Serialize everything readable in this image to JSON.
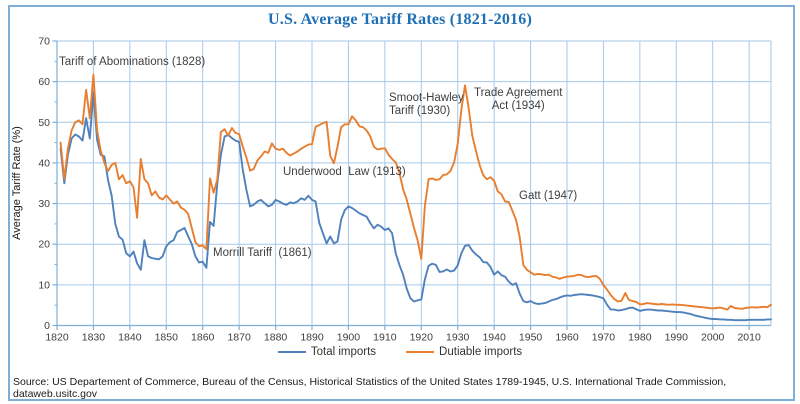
{
  "frame_border_color": "#7FAFD9",
  "title_color": "#1F6FB5",
  "source_note": "Source: US Departement of Commerce, Bureau of the Census, Historical Statistics of the United States 1789-1945, U.S. International Trade Commission, dataweb.usitc.gov",
  "chart_data": {
    "type": "line",
    "title": "U.S. Average Tariff Rates (1821-2016)",
    "xlabel": "",
    "ylabel": "Average Tariff Rate (%)",
    "xlim": [
      1820,
      2016
    ],
    "ylim": [
      0,
      70
    ],
    "x_start_year": 1821,
    "x_ticks": [
      1820,
      1830,
      1840,
      1850,
      1860,
      1870,
      1880,
      1890,
      1900,
      1910,
      1920,
      1930,
      1940,
      1950,
      1960,
      1970,
      1980,
      1990,
      2000,
      2010
    ],
    "y_ticks": [
      0,
      10,
      20,
      30,
      40,
      50,
      60,
      70
    ],
    "y_minor_tick_step": 5,
    "grid": true,
    "grid_color": "#A6C9E8",
    "axis_color": "#7FAFD9",
    "tick_label_color": "#404040",
    "legend_position": "bottom-center",
    "annotations": [
      {
        "id": "tariff-of-abominations",
        "text": "Tariff of Abominations (1828)"
      },
      {
        "id": "morrill-tariff",
        "text": "Morrill Tariff  (1861)"
      },
      {
        "id": "underwood-law",
        "text": "Underwood  Law (1913)"
      },
      {
        "id": "smoot-hawley",
        "text": "Smoot-Hawley\nTariff (1930)"
      },
      {
        "id": "trade-agreement-act",
        "text": "Trade Agreement\nAct (1934)"
      },
      {
        "id": "gatt",
        "text": "Gatt (1947)"
      }
    ],
    "series": [
      {
        "name": "Total imports",
        "color": "#4F81BD",
        "values": [
          43.5,
          35.0,
          42.0,
          46.0,
          47.0,
          46.5,
          45.5,
          51.0,
          46.0,
          57.3,
          45.7,
          42.0,
          41.6,
          35.8,
          32.0,
          25.0,
          21.9,
          21.1,
          17.8,
          17.0,
          18.2,
          15.3,
          13.7,
          21.0,
          17.0,
          16.6,
          16.4,
          16.3,
          17.0,
          19.5,
          20.5,
          21.0,
          23.0,
          23.5,
          24.0,
          22.0,
          20.0,
          17.0,
          15.5,
          15.7,
          14.2,
          25.5,
          24.5,
          35.0,
          42.0,
          46.5,
          46.9,
          46.1,
          45.5,
          45.2,
          38.3,
          33.4,
          29.3,
          29.7,
          30.5,
          30.9,
          30.1,
          29.3,
          29.7,
          30.9,
          30.5,
          30.0,
          29.7,
          30.3,
          30.1,
          30.5,
          31.3,
          30.9,
          31.9,
          30.9,
          30.5,
          25.2,
          22.7,
          20.2,
          21.9,
          20.2,
          20.7,
          26.0,
          28.4,
          29.3,
          28.9,
          28.3,
          27.6,
          27.2,
          26.8,
          25.2,
          23.9,
          24.8,
          24.3,
          23.5,
          23.9,
          22.7,
          17.7,
          14.9,
          12.5,
          9.1,
          6.7,
          5.9,
          6.2,
          6.4,
          11.4,
          14.7,
          15.2,
          14.9,
          13.2,
          13.3,
          13.8,
          13.3,
          13.5,
          14.8,
          17.8,
          19.6,
          19.8,
          18.4,
          17.5,
          16.8,
          15.6,
          15.5,
          14.4,
          12.5,
          13.3,
          12.4,
          12.0,
          10.8,
          10.0,
          10.4,
          7.9,
          6.0,
          5.7,
          6.0,
          5.5,
          5.3,
          5.4,
          5.5,
          5.9,
          6.3,
          6.5,
          6.9,
          7.2,
          7.4,
          7.3,
          7.5,
          7.6,
          7.7,
          7.6,
          7.5,
          7.4,
          7.2,
          7.0,
          6.7,
          5.1,
          3.9,
          3.9,
          3.7,
          3.8,
          4.0,
          4.3,
          4.4,
          4.0,
          3.6,
          3.8,
          3.9,
          3.9,
          3.8,
          3.7,
          3.7,
          3.6,
          3.5,
          3.4,
          3.3,
          3.3,
          3.2,
          3.0,
          2.8,
          2.5,
          2.3,
          2.1,
          1.9,
          1.7,
          1.6,
          1.6,
          1.5,
          1.5,
          1.4,
          1.4,
          1.3,
          1.3,
          1.3,
          1.3,
          1.4,
          1.4,
          1.4,
          1.4,
          1.4,
          1.5,
          1.5
        ]
      },
      {
        "name": "Dutiable imports",
        "color": "#E87E2F",
        "values": [
          45.0,
          36.0,
          43.5,
          48.0,
          50.0,
          50.5,
          49.5,
          58.0,
          51.0,
          61.7,
          48.0,
          43.0,
          40.0,
          38.0,
          39.5,
          40.0,
          36.0,
          37.0,
          35.0,
          35.5,
          34.0,
          26.5,
          41.0,
          36.0,
          35.0,
          32.0,
          33.0,
          31.5,
          31.0,
          32.0,
          31.0,
          30.0,
          30.5,
          29.0,
          28.5,
          27.5,
          24.0,
          20.5,
          19.5,
          19.7,
          18.8,
          36.2,
          32.7,
          35.9,
          47.6,
          48.3,
          46.7,
          48.6,
          47.4,
          47.1,
          44.0,
          41.3,
          38.1,
          38.5,
          40.6,
          41.6,
          42.8,
          42.5,
          44.8,
          43.5,
          43.2,
          43.5,
          42.5,
          41.8,
          42.3,
          42.8,
          43.5,
          44.0,
          44.5,
          44.6,
          48.9,
          49.3,
          49.8,
          50.1,
          41.8,
          39.9,
          44.0,
          48.8,
          49.5,
          49.5,
          51.5,
          50.5,
          49.0,
          48.8,
          48.0,
          46.5,
          44.0,
          43.3,
          43.5,
          43.6,
          42.0,
          41.0,
          40.1,
          37.6,
          33.5,
          31.0,
          27.5,
          24.0,
          21.0,
          16.4,
          29.5,
          36.0,
          36.2,
          35.8,
          36.0,
          37.0,
          37.2,
          38.0,
          40.1,
          44.7,
          53.2,
          59.1,
          53.6,
          46.7,
          43.0,
          39.5,
          37.0,
          36.0,
          36.5,
          35.6,
          33.0,
          32.3,
          30.5,
          30.4,
          28.2,
          26.0,
          21.9,
          14.9,
          13.7,
          13.1,
          12.5,
          12.7,
          12.6,
          12.4,
          12.5,
          12.0,
          11.8,
          11.5,
          11.8,
          12.0,
          12.1,
          12.2,
          12.5,
          12.4,
          12.0,
          11.9,
          12.1,
          12.2,
          11.5,
          10.0,
          8.8,
          7.5,
          6.5,
          5.9,
          6.1,
          8.0,
          6.3,
          6.0,
          5.8,
          5.2,
          5.3,
          5.5,
          5.4,
          5.3,
          5.2,
          5.3,
          5.2,
          5.1,
          5.2,
          5.1,
          5.1,
          5.0,
          4.9,
          4.8,
          4.7,
          4.6,
          4.5,
          4.4,
          4.3,
          4.2,
          4.3,
          4.4,
          4.2,
          3.9,
          4.8,
          4.3,
          4.2,
          4.1,
          4.3,
          4.4,
          4.5,
          4.4,
          4.5,
          4.6,
          4.5,
          5.1
        ]
      }
    ]
  }
}
